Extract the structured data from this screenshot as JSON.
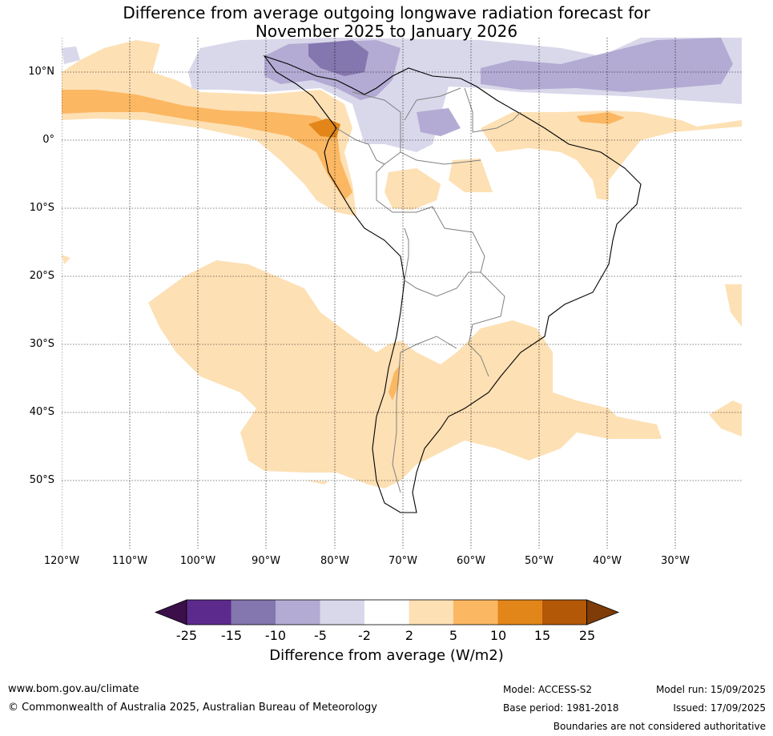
{
  "title": {
    "line1": "Difference from average outgoing longwave radiation forecast for",
    "line2": "November 2025 to January 2026"
  },
  "latitudes": [
    "10°N",
    "0°",
    "10°S",
    "20°S",
    "30°S",
    "40°S",
    "50°S"
  ],
  "longitudes": [
    "120°W",
    "110°W",
    "100°W",
    "90°W",
    "80°W",
    "70°W",
    "60°W",
    "50°W",
    "40°W",
    "30°W"
  ],
  "colorbar": {
    "ticks": [
      "-25",
      "-15",
      "-10",
      "-5",
      "-2",
      "2",
      "5",
      "10",
      "15",
      "25"
    ],
    "colors": [
      "#3b0f4a",
      "#5c2a8c",
      "#8476ae",
      "#b3abd3",
      "#d9d8eb",
      "#ffffff",
      "#fde0b4",
      "#fbb762",
      "#e2861a",
      "#b35806",
      "#7f3b08"
    ],
    "label": "Difference from average (W/m2)"
  },
  "footer": {
    "website": "www.bom.gov.au/climate",
    "copyright": "© Commonwealth of Australia 2025, Australian Bureau of Meteorology",
    "model": "Model: ACCESS-S2",
    "base_period": "Base period: 1981-2018",
    "model_run": "Model run: 15/09/2025",
    "issued": "Issued: 17/09/2025",
    "disclaimer": "Boundaries are not considered authoritative"
  }
}
